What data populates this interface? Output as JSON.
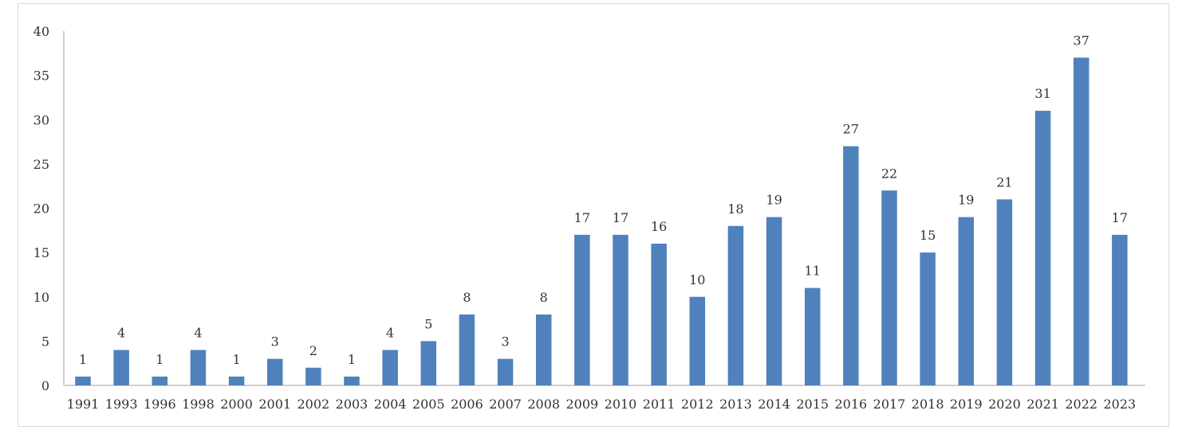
{
  "chart_data": {
    "type": "bar",
    "title": "",
    "xlabel": "",
    "ylabel": "",
    "ylim": [
      0,
      40
    ],
    "yticks": [
      0,
      5,
      10,
      15,
      20,
      25,
      30,
      35,
      40
    ],
    "grid": false,
    "legend": "none",
    "bar_color": "#4f81bd",
    "axis_color": "#bfbfbf",
    "categories": [
      "1991",
      "1993",
      "1996",
      "1998",
      "2000",
      "2001",
      "2002",
      "2003",
      "2004",
      "2005",
      "2006",
      "2007",
      "2008",
      "2009",
      "2010",
      "2011",
      "2012",
      "2013",
      "2014",
      "2015",
      "2016",
      "2017",
      "2018",
      "2019",
      "2020",
      "2021",
      "2022",
      "2023"
    ],
    "values": [
      1,
      4,
      1,
      4,
      1,
      3,
      2,
      1,
      4,
      5,
      8,
      3,
      8,
      17,
      17,
      16,
      10,
      18,
      19,
      11,
      27,
      22,
      15,
      19,
      21,
      31,
      37,
      17
    ]
  }
}
